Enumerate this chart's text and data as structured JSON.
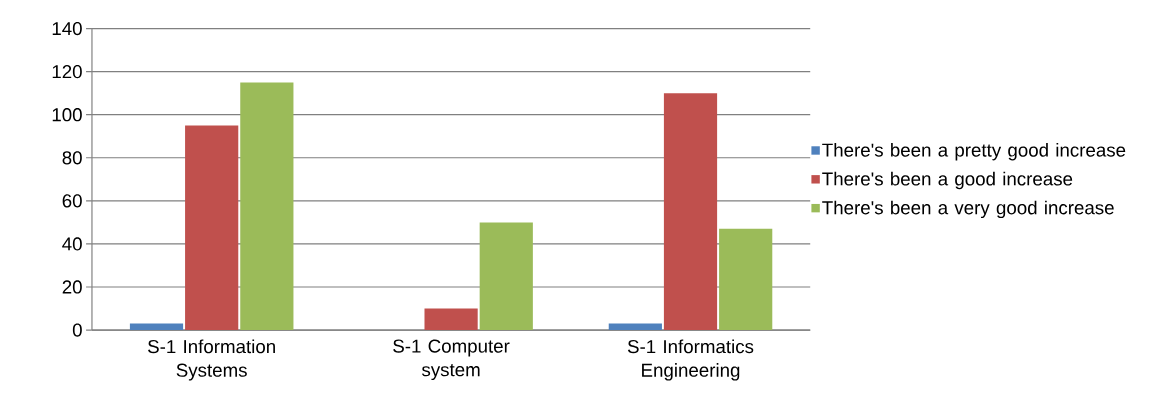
{
  "chart_data": {
    "type": "bar",
    "categories": [
      "S-1 Information Systems",
      "S-1 Computer system",
      "S-1 Informatics Engineering"
    ],
    "series": [
      {
        "name": "There's been a pretty good increase",
        "color": "#4f81bd",
        "values": [
          3,
          0,
          3
        ]
      },
      {
        "name": "There's been a good increase",
        "color": "#c0504d",
        "values": [
          95,
          10,
          110
        ]
      },
      {
        "name": "There's been a very good increase",
        "color": "#9bbb59",
        "values": [
          115,
          50,
          47
        ]
      }
    ],
    "ylim": [
      0,
      140
    ],
    "yticks": [
      0,
      20,
      40,
      60,
      80,
      100,
      120,
      140
    ],
    "grid": "y",
    "legend": "right"
  }
}
